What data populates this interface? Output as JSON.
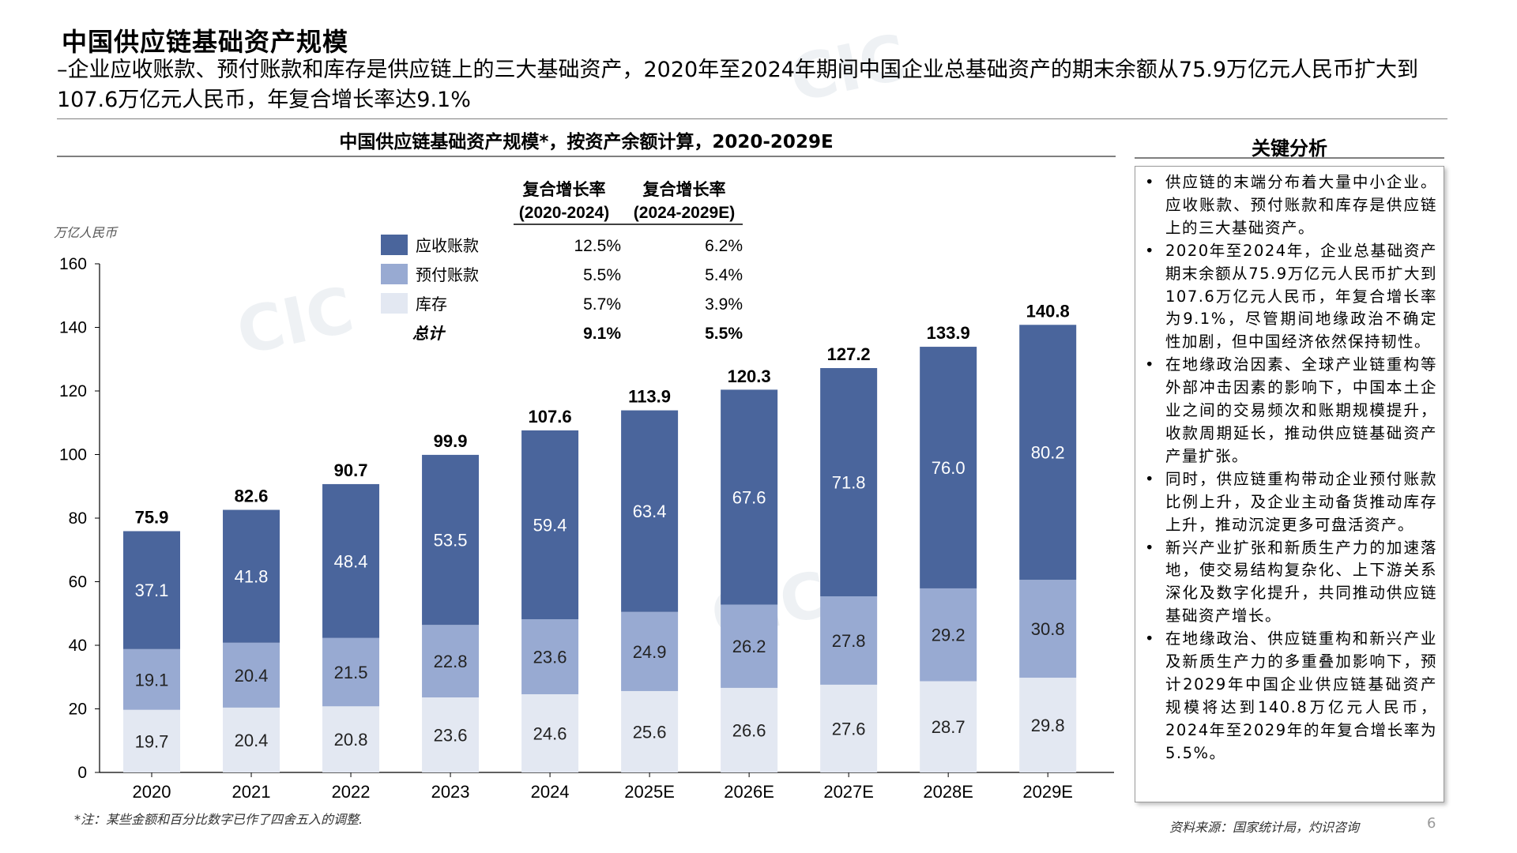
{
  "slide": {
    "title": "中国供应链基础资产规模",
    "subtitle": "–企业应收账款、预付账款和库存是供应链上的三大基础资产，2020年至2024年期间中国企业总基础资产的期末余额从75.9万亿元人民币扩大到107.6万亿元人民币，年复合增长率达9.1%",
    "page_number": "6"
  },
  "chart_data": {
    "type": "bar",
    "stacked": true,
    "title": "中国供应链基础资产规模*，按资产余额计算，2020-2029E",
    "ylabel": "万亿人民币",
    "ylim": [
      0,
      160
    ],
    "yticks": [
      0,
      20,
      40,
      60,
      80,
      100,
      120,
      140,
      160
    ],
    "categories": [
      "2020",
      "2021",
      "2022",
      "2023",
      "2024",
      "2025E",
      "2026E",
      "2027E",
      "2028E",
      "2029E"
    ],
    "series": [
      {
        "name": "库存",
        "color": "#e3e8f2",
        "values": [
          19.7,
          20.4,
          20.8,
          23.6,
          24.6,
          25.6,
          26.6,
          27.6,
          28.7,
          29.8
        ]
      },
      {
        "name": "预付账款",
        "color": "#98aad2",
        "values": [
          19.1,
          20.4,
          21.5,
          22.8,
          23.6,
          24.9,
          26.2,
          27.8,
          29.2,
          30.8
        ]
      },
      {
        "name": "应收账款",
        "color": "#4a659c",
        "values": [
          37.1,
          41.8,
          48.4,
          53.5,
          59.4,
          63.4,
          67.6,
          71.8,
          76.0,
          80.2
        ]
      }
    ],
    "totals": [
      75.9,
      82.6,
      90.7,
      99.9,
      107.6,
      113.9,
      120.3,
      127.2,
      133.9,
      140.8
    ],
    "legend": {
      "placement": "top-left",
      "header1": [
        "复合增长率",
        "(2020-2024)"
      ],
      "header2": [
        "复合增长率",
        "(2024-2029E)"
      ],
      "rows": [
        {
          "name": "应收账款",
          "color": "#4a659c",
          "cagr1": "12.5%",
          "cagr2": "6.2%"
        },
        {
          "name": "预付账款",
          "color": "#98aad2",
          "cagr1": "5.5%",
          "cagr2": "5.4%"
        },
        {
          "name": "库存",
          "color": "#e3e8f2",
          "cagr1": "5.7%",
          "cagr2": "3.9%"
        }
      ],
      "total_row": {
        "name": "总计",
        "cagr1": "9.1%",
        "cagr2": "5.5%"
      }
    }
  },
  "key_analysis": {
    "title": "关键分析",
    "points": [
      "供应链的末端分布着大量中小企业。应收账款、预付账款和库存是供应链上的三大基础资产。",
      "2020年至2024年，企业总基础资产期末余额从75.9万亿元人民币扩大到107.6万亿元人民币，年复合增长率为9.1%，尽管期间地缘政治不确定性加剧，但中国经济依然保持韧性。",
      "在地缘政治因素、全球产业链重构等外部冲击因素的影响下，中国本土企业之间的交易频次和账期规模提升，收款周期延长，推动供应链基础资产产量扩张。",
      "同时，供应链重构带动企业预付账款比例上升，及企业主动备货推动库存上升，推动沉淀更多可盘活资产。",
      "新兴产业扩张和新质生产力的加速落地，使交易结构复杂化、上下游关系深化及数字化提升，共同推动供应链基础资产增长。",
      "在地缘政治、供应链重构和新兴产业及新质生产力的多重叠加影响下，预计2029年中国企业供应链基础资产规模将达到140.8万亿元人民币，2024年至2029年的年复合增长率为5.5%。"
    ]
  },
  "notes": {
    "footnote": "*注：某些金额和百分比数字已作了四舍五入的调整.",
    "source": "资料来源：国家统计局，灼识咨询"
  }
}
